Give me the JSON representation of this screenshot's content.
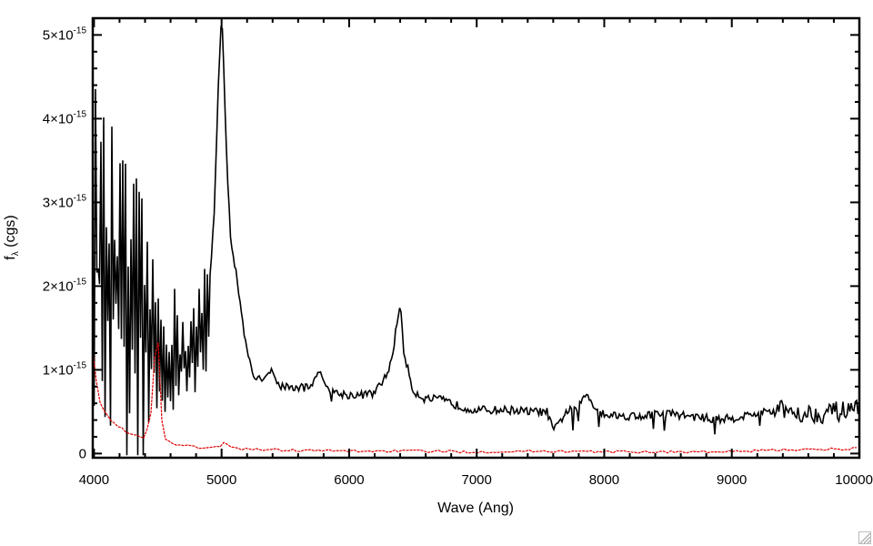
{
  "chart_data": {
    "type": "line",
    "title": "",
    "xlabel": "Wave (Ang)",
    "ylabel": {
      "main": "f",
      "sub": "λ",
      "rest": " (cgs)"
    },
    "xlim": [
      3990,
      10000
    ],
    "ylim": [
      -5e-17,
      5.2e-15
    ],
    "x_ticks": [
      {
        "value": 4000,
        "label": "4000"
      },
      {
        "value": 5000,
        "label": "5000"
      },
      {
        "value": 6000,
        "label": "6000"
      },
      {
        "value": 7000,
        "label": "7000"
      },
      {
        "value": 8000,
        "label": "8000"
      },
      {
        "value": 9000,
        "label": "9000"
      },
      {
        "value": 10000,
        "label": "10000"
      }
    ],
    "y_ticks": [
      {
        "value": 0,
        "mantissa": "0",
        "exponent": ""
      },
      {
        "value": 1e-15,
        "mantissa": "1×10",
        "exponent": "-15"
      },
      {
        "value": 2e-15,
        "mantissa": "2×10",
        "exponent": "-15"
      },
      {
        "value": 3e-15,
        "mantissa": "3×10",
        "exponent": "-15"
      },
      {
        "value": 4e-15,
        "mantissa": "4×10",
        "exponent": "-15"
      },
      {
        "value": 5e-15,
        "mantissa": "5×10",
        "exponent": "-15"
      }
    ],
    "grid": false,
    "legend": "none",
    "series": [
      {
        "color": "#000000",
        "x": [
          3990,
          4010,
          4030,
          4050,
          4080,
          4100,
          4150,
          4200,
          4250,
          4300,
          4350,
          4400,
          4450,
          4500,
          4550,
          4600,
          4650,
          4700,
          4750,
          4800,
          4850,
          4900,
          4940,
          4970,
          4990,
          5000,
          5010,
          5020,
          5040,
          5070,
          5100,
          5130,
          5150,
          5200,
          5250,
          5300,
          5350,
          5380,
          5450,
          5500,
          5600,
          5700,
          5760,
          5800,
          5900,
          6000,
          6100,
          6200,
          6300,
          6350,
          6380,
          6400,
          6430,
          6500,
          6600,
          6700,
          6800,
          6900,
          7000,
          7100,
          7200,
          7300,
          7400,
          7500,
          7550,
          7600,
          7620,
          7700,
          7800,
          7860,
          7900,
          7950,
          8000,
          8100,
          8200,
          8300,
          8400,
          8500,
          8600,
          8700,
          8800,
          8900,
          9000,
          9100,
          9200,
          9300,
          9400,
          9500,
          9600,
          9700,
          9800,
          9900,
          10000
        ],
        "y": [
          2.5e-15,
          2.3e-15,
          2.2e-15,
          2.1e-15,
          2.1e-15,
          2e-15,
          1.9e-15,
          1.8e-15,
          1.7e-15,
          1.6e-15,
          1.5e-15,
          1.4e-15,
          1.3e-15,
          1.25e-15,
          1.2e-15,
          1.15e-15,
          1.1e-15,
          1.1e-15,
          1.1e-15,
          1.2e-15,
          1.4e-15,
          1.9e-15,
          2.8e-15,
          4.2e-15,
          5e-15,
          5.15e-15,
          5e-15,
          4.4e-15,
          3.5e-15,
          2.6e-15,
          2.3e-15,
          2e-15,
          1.7e-15,
          1.2e-15,
          9.2e-16,
          8.8e-16,
          9.5e-16,
          1e-15,
          8.2e-16,
          8e-16,
          7.8e-16,
          8e-16,
          1.02e-15,
          8.2e-16,
          7.2e-16,
          7e-16,
          7e-16,
          7.2e-16,
          9.5e-16,
          1.25e-15,
          1.65e-15,
          1.78e-15,
          1.2e-15,
          7.5e-16,
          6.5e-16,
          6.5e-16,
          6e-16,
          5.5e-16,
          5.2e-16,
          5.2e-16,
          5.2e-16,
          5.2e-16,
          5e-16,
          5e-16,
          5e-16,
          2.8e-16,
          3e-16,
          5e-16,
          5.5e-16,
          7.2e-16,
          6.2e-16,
          5.2e-16,
          4.8e-16,
          4.5e-16,
          4.5e-16,
          4.5e-16,
          4.7e-16,
          4.8e-16,
          4.6e-16,
          4.4e-16,
          4.2e-16,
          4.1e-16,
          4.2e-16,
          4.5e-16,
          4.8e-16,
          5e-16,
          5.2e-16,
          5e-16,
          4.8e-16,
          4.8e-16,
          5e-16,
          5e-16,
          5.2e-16
        ]
      },
      {
        "color": "#e00000",
        "x": [
          3990,
          4000,
          4020,
          4050,
          4100,
          4150,
          4200,
          4300,
          4400,
          4450,
          4480,
          4500,
          4520,
          4560,
          4600,
          4700,
          4800,
          4900,
          4950,
          5000,
          5020,
          5050,
          5100,
          5300,
          5500,
          6000,
          6500,
          7000,
          7500,
          8000,
          8500,
          9000,
          9300,
          9500,
          9700,
          9800,
          9900,
          10000
        ],
        "y": [
          1.25e-15,
          1.2e-15,
          8.5e-16,
          6e-16,
          4.5e-16,
          3.8e-16,
          3.2e-16,
          2.2e-16,
          1.8e-16,
          5e-16,
          1.3e-15,
          1.5e-15,
          5e-16,
          1.8e-16,
          1.2e-16,
          1e-16,
          8e-17,
          6e-17,
          7e-17,
          1e-16,
          1.4e-16,
          1e-16,
          6e-17,
          5e-17,
          4e-17,
          3e-17,
          3e-17,
          2e-17,
          3e-17,
          2e-17,
          2e-17,
          2e-17,
          4e-17,
          5e-17,
          4e-17,
          6e-17,
          5e-17,
          7e-17
        ]
      }
    ]
  }
}
